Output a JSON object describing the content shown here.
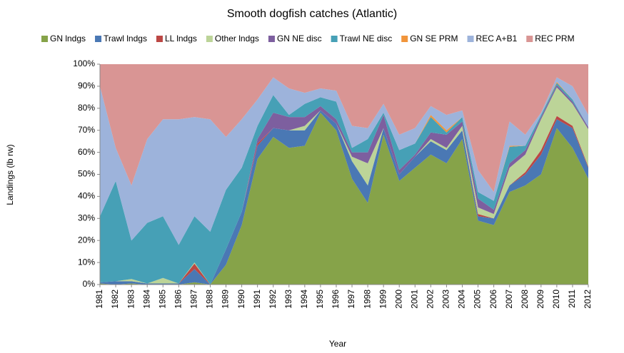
{
  "chart_data": {
    "type": "area",
    "stacked": true,
    "title": "Smooth dogfish catches (Atlantic)",
    "x_label": "Year",
    "y_label": "Landings (lb rw)",
    "categories": [
      "1981",
      "1982",
      "1983",
      "1984",
      "1985",
      "1986",
      "1987",
      "1988",
      "1989",
      "1990",
      "1991",
      "1992",
      "1993",
      "1994",
      "1995",
      "1996",
      "1997",
      "1998",
      "1999",
      "2000",
      "2001",
      "2002",
      "2003",
      "2004",
      "2005",
      "2006",
      "2007",
      "2008",
      "2009",
      "2010",
      "2011",
      "2012"
    ],
    "series": [
      {
        "name": "GN lndgs",
        "color": "#86a349",
        "values": [
          0.5,
          0,
          0.5,
          0,
          0,
          0,
          1,
          0,
          9,
          27,
          57,
          67,
          62,
          63,
          78,
          70,
          48,
          37,
          68,
          47,
          53,
          59,
          55,
          66,
          29,
          27,
          42,
          45,
          50,
          71,
          62,
          48
        ]
      },
      {
        "name": "Trawl lndgs",
        "color": "#4a78b4",
        "values": [
          0.5,
          1.5,
          1,
          0.5,
          0.5,
          0.5,
          6,
          0,
          7,
          6,
          6,
          4,
          8,
          7,
          1,
          3,
          8,
          8,
          3,
          3,
          5,
          6,
          6,
          4,
          2,
          3,
          3,
          5,
          9,
          4,
          9,
          5
        ]
      },
      {
        "name": "LL lndgs",
        "color": "#bc4744",
        "values": [
          0,
          0,
          0,
          0,
          0,
          0,
          2.5,
          0,
          0,
          0,
          1,
          0,
          0,
          0,
          0,
          0,
          0,
          0,
          0,
          0,
          0,
          0,
          0,
          0,
          1,
          0,
          0,
          1,
          2,
          1.5,
          1,
          0.5
        ]
      },
      {
        "name": "Other lndgs",
        "color": "#bcd498",
        "values": [
          0,
          0,
          1,
          0,
          2.5,
          0,
          0.5,
          0,
          0,
          0,
          0,
          0,
          0,
          2,
          0,
          0,
          2,
          10,
          0,
          0,
          0,
          1,
          1,
          2,
          3,
          2,
          8,
          8,
          14,
          13,
          10,
          17
        ]
      },
      {
        "name": "GN NE disc",
        "color": "#7d5f9f",
        "values": [
          0,
          0,
          0,
          0,
          0,
          0,
          0,
          0,
          0,
          0,
          2,
          7,
          6,
          4,
          2,
          2,
          2,
          5,
          6,
          2,
          1,
          3,
          6,
          2,
          4,
          2,
          2,
          2,
          1,
          1,
          1,
          1
        ]
      },
      {
        "name": "Trawl NE disc",
        "color": "#46a0b6",
        "values": [
          30,
          45.5,
          17.5,
          27.5,
          28,
          17.5,
          21,
          24,
          27,
          20,
          6,
          8,
          1,
          6,
          4,
          8,
          2,
          6,
          1,
          9,
          5,
          7,
          1,
          2,
          3,
          4,
          7.5,
          2,
          1,
          1,
          1,
          0
        ]
      },
      {
        "name": "GN SE PRM",
        "color": "#f1953b",
        "values": [
          0,
          0,
          0,
          0,
          0,
          0,
          0,
          0,
          0,
          0,
          0,
          0,
          0,
          0,
          0,
          0,
          0,
          0,
          0,
          0,
          0,
          1,
          1,
          0,
          0,
          0,
          0.5,
          0,
          0,
          0.5,
          0,
          0
        ]
      },
      {
        "name": "REC A+B1",
        "color": "#9db3db",
        "values": [
          59,
          15,
          25,
          38,
          44,
          57,
          45,
          51,
          24,
          22,
          12,
          8,
          12,
          5,
          4,
          5,
          10,
          5,
          4,
          7,
          7,
          4,
          7,
          3,
          10,
          4,
          11,
          5,
          1,
          2,
          6,
          5.5
        ]
      },
      {
        "name": "REC PRM",
        "color": "#d99594",
        "values": [
          10,
          38,
          55,
          34,
          25,
          25,
          24,
          25,
          33,
          25,
          16,
          6,
          11,
          13,
          11,
          12,
          28,
          29,
          18,
          32,
          29,
          19,
          23,
          21,
          48,
          58,
          26,
          32,
          22,
          6,
          10,
          23
        ]
      }
    ],
    "ylim": [
      0,
      100
    ],
    "yticks": [
      {
        "value": 0,
        "label": "0%"
      },
      {
        "value": 10,
        "label": "10%"
      },
      {
        "value": 20,
        "label": "20%"
      },
      {
        "value": 30,
        "label": "30%"
      },
      {
        "value": 40,
        "label": "40%"
      },
      {
        "value": 50,
        "label": "50%"
      },
      {
        "value": 60,
        "label": "60%"
      },
      {
        "value": 70,
        "label": "70%"
      },
      {
        "value": 80,
        "label": "80%"
      },
      {
        "value": 90,
        "label": "90%"
      },
      {
        "value": 100,
        "label": "100%"
      }
    ],
    "legend": "top"
  }
}
